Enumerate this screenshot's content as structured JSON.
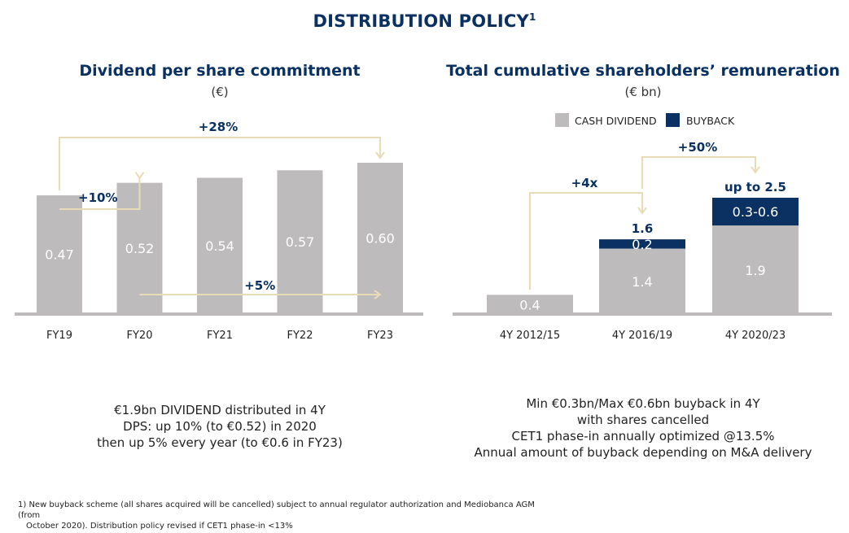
{
  "page": {
    "title": "DISTRIBUTION POLICY",
    "title_note": "1"
  },
  "left": {
    "title": "Dividend per share commitment",
    "unit": "(€)",
    "summary": [
      "€1.9bn DIVIDEND distributed in 4Y",
      "DPS: up 10% (to €0.52) in 2020",
      "then up 5% every year (to €0.6 in FY23)"
    ]
  },
  "right": {
    "title": "Total cumulative shareholders’ remuneration",
    "unit": "(€ bn)",
    "summary": [
      "Min €0.3bn/Max €0.6bn buyback in 4Y",
      "with shares cancelled",
      "CET1 phase-in annually optimized @13.5%",
      "Annual amount of buyback depending on M&A delivery"
    ]
  },
  "footnote": [
    "1) New buyback scheme (all shares acquired will be cancelled) subject to annual regulator authorization and Mediobanca AGM (from",
    "October 2020). Distribution policy revised if CET1 phase-in <13%"
  ],
  "colors": {
    "navy": "#0a3161",
    "grey_bar": "#bdbbbc",
    "axis": "#bdbbbc",
    "arrow": "#e7dcb5",
    "bar_label": "#ffffff"
  },
  "chart_data": [
    {
      "type": "bar",
      "title": "Dividend per share commitment",
      "ylabel": "(€)",
      "categories": [
        "FY19",
        "FY20",
        "FY21",
        "FY22",
        "FY23"
      ],
      "values": [
        0.47,
        0.52,
        0.54,
        0.57,
        0.6
      ],
      "value_labels": [
        "0.47",
        "0.52",
        "0.54",
        "0.57",
        "0.60"
      ],
      "annotations": [
        {
          "label": "+28%",
          "from": "FY19",
          "to": "FY23"
        },
        {
          "label": "+10%",
          "from": "FY19",
          "to": "FY20"
        },
        {
          "label": "+5%",
          "from": "FY20",
          "to": "FY23"
        }
      ]
    },
    {
      "type": "bar",
      "stacked": true,
      "title": "Total cumulative shareholders’ remuneration",
      "ylabel": "(€ bn)",
      "categories": [
        "4Y 2012/15",
        "4Y 2016/19",
        "4Y 2020/23"
      ],
      "legend": [
        "CASH DIVIDEND",
        "BUYBACK"
      ],
      "legend_position": "top",
      "series": [
        {
          "name": "CASH DIVIDEND",
          "values": [
            0.4,
            1.4,
            1.9
          ],
          "labels": [
            "0.4",
            "1.4",
            "1.9"
          ],
          "color": "#bdbbbc"
        },
        {
          "name": "BUYBACK",
          "values": [
            0,
            0.2,
            0.6
          ],
          "labels": [
            "",
            "0.2",
            "0.3-0.6"
          ],
          "color": "#0a3161"
        }
      ],
      "totals": [
        "",
        "1.6",
        "up to 2.5"
      ],
      "annotations": [
        {
          "label": "+4x",
          "from": "4Y 2012/15",
          "to": "4Y 2016/19"
        },
        {
          "label": "+50%",
          "from": "4Y 2016/19",
          "to": "4Y 2020/23"
        }
      ]
    }
  ]
}
